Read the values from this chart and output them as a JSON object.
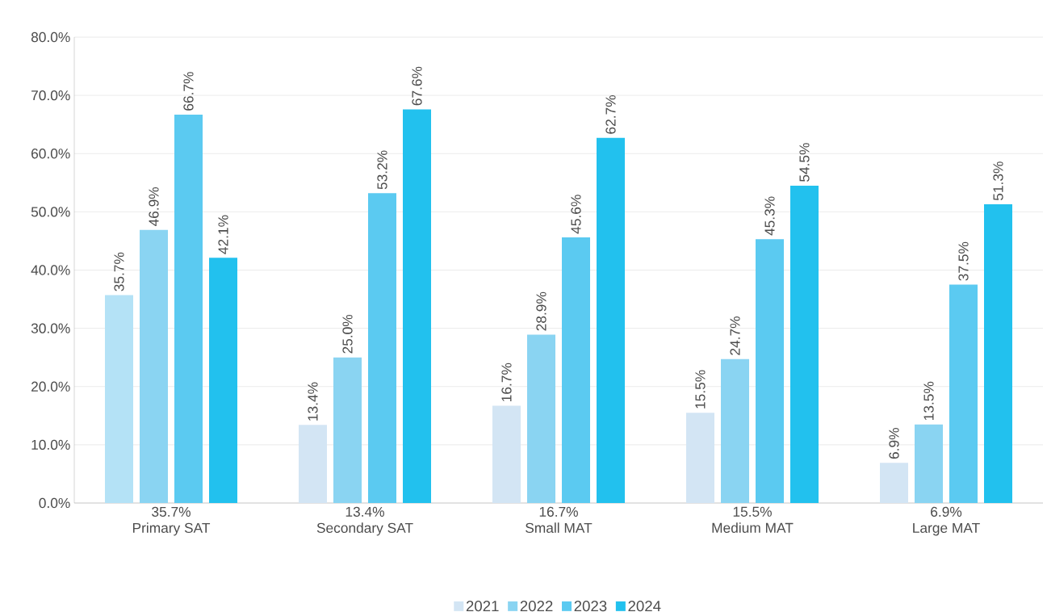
{
  "chart_data": {
    "type": "bar",
    "categories": [
      "Primary SAT",
      "Secondary SAT",
      "Small MAT",
      "Medium MAT",
      "Large MAT"
    ],
    "annotations": [
      "35.7%",
      "13.4%",
      "16.7%",
      "15.5%",
      "6.9%"
    ],
    "series": [
      {
        "name": "2021",
        "color": "#d3e5f4",
        "colors": [
          "#b4e2f6",
          "#d3e5f4",
          "#d3e5f4",
          "#d3e5f4",
          "#d3e5f4"
        ],
        "values": [
          35.7,
          13.4,
          16.7,
          15.5,
          6.9
        ],
        "value_labels": [
          "35.7%",
          "13.4%",
          "16.7%",
          "15.5%",
          "6.9%"
        ]
      },
      {
        "name": "2022",
        "color": "#8ad4f2",
        "values": [
          46.9,
          25.0,
          28.9,
          24.7,
          13.5
        ],
        "value_labels": [
          "46.9%",
          "25.0%",
          "28.9%",
          "24.7%",
          "13.5%"
        ]
      },
      {
        "name": "2023",
        "color": "#5bcaf1",
        "values": [
          66.7,
          53.2,
          45.6,
          45.3,
          37.5
        ],
        "value_labels": [
          "66.7%",
          "53.2%",
          "45.6%",
          "45.3%",
          "37.5%"
        ]
      },
      {
        "name": "2024",
        "color": "#22c1ee",
        "values": [
          42.1,
          67.6,
          62.7,
          54.5,
          51.3
        ],
        "value_labels": [
          "42.1%",
          "67.6%",
          "62.7%",
          "54.5%",
          "51.3%"
        ]
      }
    ],
    "ylim": [
      0,
      80
    ],
    "yticks": [
      {
        "value": 0,
        "label": "0.0%"
      },
      {
        "value": 10,
        "label": "10.0%"
      },
      {
        "value": 20,
        "label": "20.0%"
      },
      {
        "value": 30,
        "label": "30.0%"
      },
      {
        "value": 40,
        "label": "40.0%"
      },
      {
        "value": 50,
        "label": "50.0%"
      },
      {
        "value": 60,
        "label": "60.0%"
      },
      {
        "value": 70,
        "label": "70.0%"
      },
      {
        "value": 80,
        "label": "80.0%"
      }
    ],
    "grid": "y",
    "legend": "bottom"
  }
}
